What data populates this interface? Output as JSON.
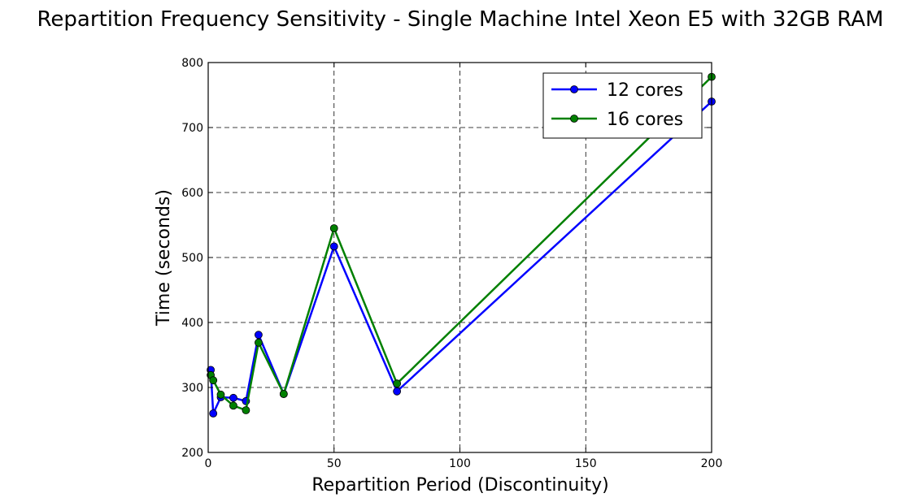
{
  "chart_data": {
    "type": "line",
    "title": "Repartition Frequency Sensitivity - Single Machine Intel Xeon E5 with 32GB RAM",
    "xlabel": "Repartition Period (Discontinuity)",
    "ylabel": "Time (seconds)",
    "xlim": [
      0,
      200
    ],
    "ylim": [
      200,
      800
    ],
    "xticks": [
      0,
      50,
      100,
      150,
      200
    ],
    "yticks": [
      200,
      300,
      400,
      500,
      600,
      700,
      800
    ],
    "grid": true,
    "legend_position": "top-right",
    "series": [
      {
        "name": "12 cores",
        "color": "#0000ff",
        "x": [
          1,
          2,
          5,
          10,
          15,
          20,
          30,
          50,
          75,
          200
        ],
        "y": [
          327,
          260,
          285,
          284,
          279,
          381,
          290,
          517,
          294,
          740
        ]
      },
      {
        "name": "16 cores",
        "color": "#008000",
        "x": [
          1,
          2,
          5,
          10,
          15,
          20,
          30,
          50,
          75,
          200
        ],
        "y": [
          319,
          311,
          289,
          272,
          265,
          369,
          290,
          545,
          306,
          778
        ]
      }
    ]
  }
}
